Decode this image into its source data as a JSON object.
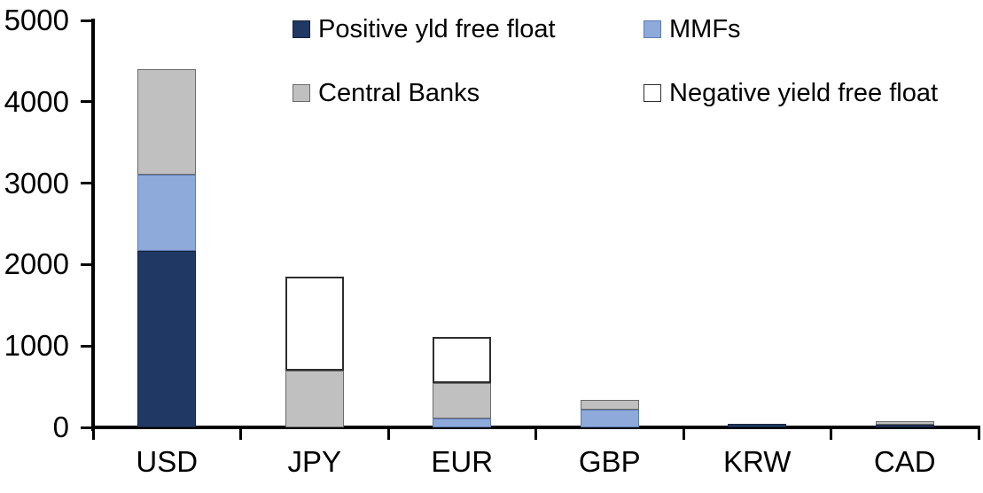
{
  "chart_data": {
    "type": "bar",
    "stacked": true,
    "title": "",
    "xlabel": "",
    "ylabel": "",
    "grid": false,
    "legend_position": "top",
    "categories": [
      "USD",
      "JPY",
      "EUR",
      "GBP",
      "KRW",
      "CAD"
    ],
    "yticks": [
      "0",
      "1000",
      "2000",
      "3000",
      "4000",
      "5000"
    ],
    "ylim": [
      0,
      5000
    ],
    "series": [
      {
        "name": "Positive yld free float",
        "color": "#203864",
        "border_color": "#16243f",
        "values": [
          2170,
          0,
          0,
          0,
          45,
          30
        ]
      },
      {
        "name": "MMFs",
        "color": "#8EAADB",
        "border_color": "#5d7bb0",
        "values": [
          930,
          0,
          110,
          220,
          0,
          0
        ]
      },
      {
        "name": "Central Banks",
        "color": "#C0C0C0",
        "border_color": "#6b6b6b",
        "values": [
          1300,
          700,
          430,
          115,
          0,
          45
        ]
      },
      {
        "name": "Negative yield free float",
        "color": "#FFFFFF",
        "border_color": "#2e2e2e",
        "values": [
          0,
          1150,
          570,
          0,
          0,
          0
        ]
      }
    ],
    "totals": [
      4400,
      1850,
      1110,
      335,
      45,
      75
    ]
  },
  "colors": {
    "axis": "#000000",
    "text": "#000000",
    "background": "#FFFFFF"
  }
}
